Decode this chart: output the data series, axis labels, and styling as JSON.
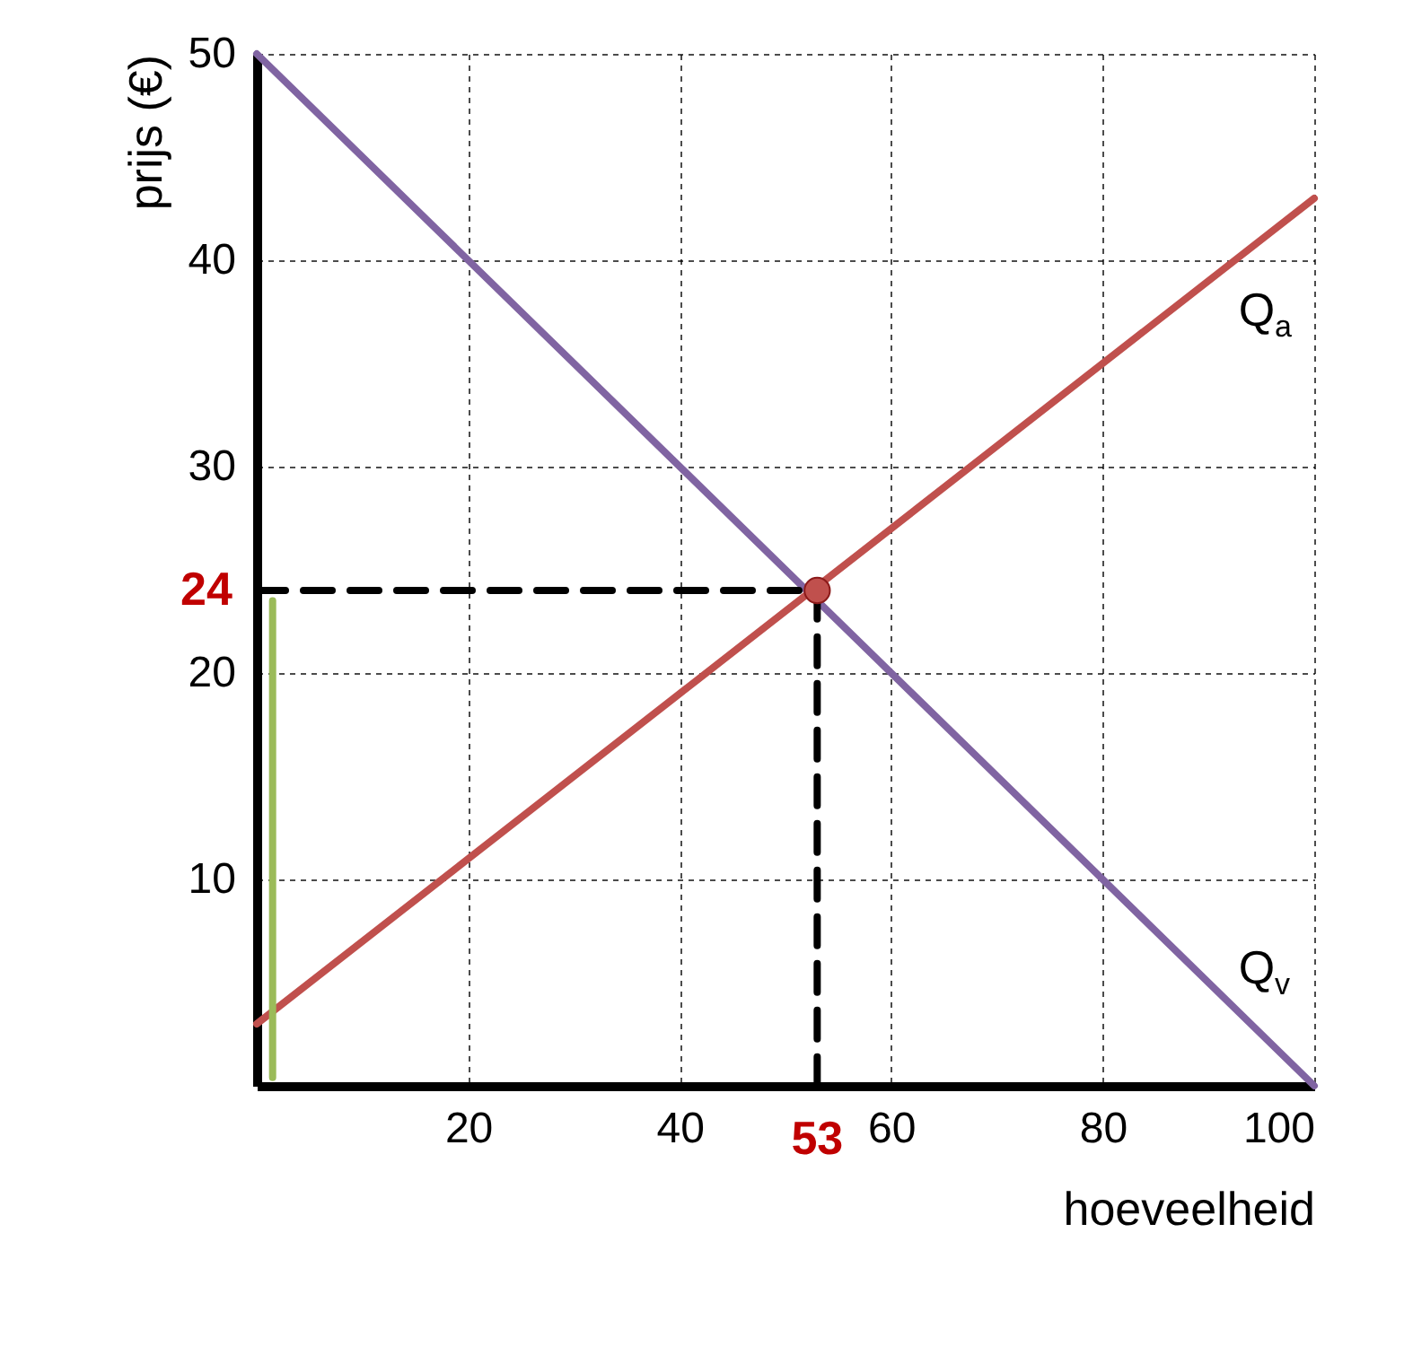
{
  "chart_data": {
    "type": "line",
    "xlabel": "hoeveelheid",
    "ylabel": "prijs (€)",
    "xlim": [
      0,
      100
    ],
    "ylim": [
      0,
      50
    ],
    "xticks": [
      20,
      40,
      60,
      80,
      100
    ],
    "yticks": [
      10,
      20,
      30,
      40,
      50
    ],
    "grid": true,
    "series": [
      {
        "name": "Q$_{a}$",
        "color": "#c0504d",
        "x": [
          0,
          100
        ],
        "values": [
          3,
          43
        ]
      },
      {
        "name": "Q$_{v}$",
        "color": "#8064a2",
        "x": [
          0,
          100
        ],
        "values": [
          50,
          0
        ]
      },
      {
        "color": "#000000",
        "x": [
          0,
          53,
          53
        ],
        "values": [
          24,
          24,
          0
        ],
        "line_style": "dashed"
      },
      {
        "color": "#9bbb59",
        "x": [
          1.5,
          1.5
        ],
        "values": [
          0.4,
          23.5
        ]
      },
      {
        "type": "scatter",
        "color": "#c0504d",
        "x": [
          53
        ],
        "values": [
          24
        ],
        "marker": "circle"
      }
    ],
    "annotations": [
      {
        "text": "24",
        "x": 0,
        "y": 24
      },
      {
        "text": "53",
        "x": 53,
        "y": 0
      }
    ]
  }
}
